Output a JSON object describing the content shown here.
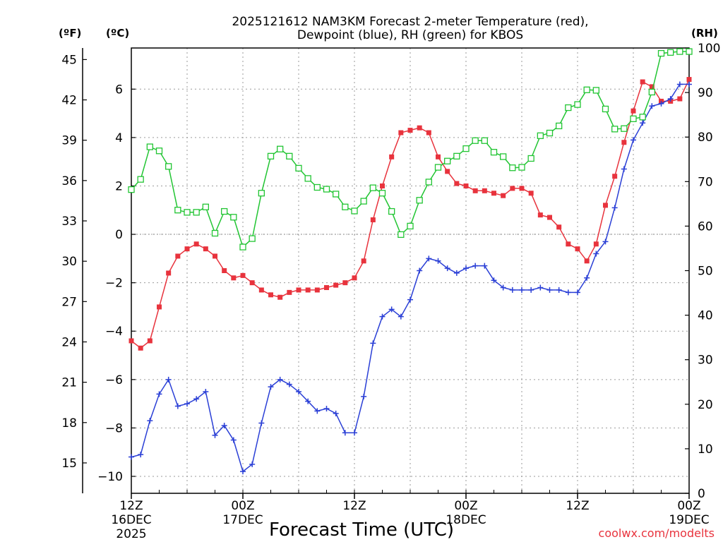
{
  "chart_data": {
    "type": "line",
    "title_line1": "2025121612 NAM3KM Forecast 2-meter Temperature (red),",
    "title_line2": "Dewpoint (blue), RH (green) for KBOS",
    "unit_f": "(ºF)",
    "unit_c": "(ºC)",
    "unit_rh": "(RH)",
    "xlabel": "Forecast Time (UTC)",
    "credit": "coolwx.com/modelts",
    "x_hours": [
      0,
      1,
      2,
      3,
      4,
      5,
      6,
      7,
      8,
      9,
      10,
      11,
      12,
      13,
      14,
      15,
      16,
      17,
      18,
      19,
      20,
      21,
      22,
      23,
      24,
      25,
      26,
      27,
      28,
      29,
      30,
      31,
      32,
      33,
      34,
      35,
      36,
      37,
      38,
      39,
      40,
      41,
      42,
      43,
      44,
      45,
      46,
      47,
      48,
      49,
      50,
      51,
      52,
      53,
      54,
      55,
      56,
      57,
      58,
      59,
      60
    ],
    "x_range": [
      0,
      60
    ],
    "x_ticks": [
      {
        "hour": 0,
        "l1": "12Z",
        "l2": "16DEC",
        "l3": "2025"
      },
      {
        "hour": 12,
        "l1": "00Z",
        "l2": "17DEC",
        "l3": ""
      },
      {
        "hour": 24,
        "l1": "12Z",
        "l2": "",
        "l3": ""
      },
      {
        "hour": 36,
        "l1": "00Z",
        "l2": "18DEC",
        "l3": ""
      },
      {
        "hour": 48,
        "l1": "12Z",
        "l2": "",
        "l3": ""
      },
      {
        "hour": 60,
        "l1": "00Z",
        "l2": "19DEC",
        "l3": ""
      }
    ],
    "c_range": [
      -10.7,
      7.7
    ],
    "c_ticks": [
      -10,
      -8,
      -6,
      -4,
      -2,
      0,
      2,
      4,
      6
    ],
    "f_ticks": [
      15,
      18,
      21,
      24,
      27,
      30,
      33,
      36,
      39,
      42,
      45
    ],
    "rh_range": [
      0,
      100
    ],
    "rh_ticks": [
      0,
      10,
      20,
      30,
      40,
      50,
      60,
      70,
      80,
      90,
      100
    ],
    "series": [
      {
        "name": "Temperature",
        "units": "C",
        "color": "#e8333d",
        "marker": "filled-square",
        "values": [
          -4.4,
          -4.7,
          -4.4,
          -3.0,
          -1.6,
          -0.9,
          -0.6,
          -0.4,
          -0.6,
          -0.9,
          -1.5,
          -1.8,
          -1.7,
          -2.0,
          -2.3,
          -2.5,
          -2.6,
          -2.4,
          -2.3,
          -2.3,
          -2.3,
          -2.2,
          -2.1,
          -2.0,
          -1.8,
          -1.1,
          0.6,
          2.0,
          3.2,
          4.2,
          4.3,
          4.4,
          4.2,
          3.2,
          2.6,
          2.1,
          2.0,
          1.8,
          1.8,
          1.7,
          1.6,
          1.9,
          1.9,
          1.7,
          0.8,
          0.7,
          0.3,
          -0.4,
          -0.6,
          -1.1,
          -0.4,
          1.2,
          2.4,
          3.8,
          5.1,
          6.3,
          6.1,
          5.5,
          5.5,
          5.6,
          6.4
        ]
      },
      {
        "name": "Dewpoint",
        "units": "C",
        "color": "#2a3fd6",
        "marker": "plus",
        "values": [
          -9.2,
          -9.1,
          -7.7,
          -6.6,
          -6.0,
          -7.1,
          -7.0,
          -6.8,
          -6.5,
          -8.3,
          -7.9,
          -8.5,
          -9.8,
          -9.5,
          -7.8,
          -6.3,
          -6.0,
          -6.2,
          -6.5,
          -6.9,
          -7.3,
          -7.2,
          -7.4,
          -8.2,
          -8.2,
          -6.7,
          -4.5,
          -3.4,
          -3.1,
          -3.4,
          -2.7,
          -1.5,
          -1.0,
          -1.1,
          -1.4,
          -1.6,
          -1.4,
          -1.3,
          -1.3,
          -1.9,
          -2.2,
          -2.3,
          -2.3,
          -2.3,
          -2.2,
          -2.3,
          -2.3,
          -2.4,
          -2.4,
          -1.8,
          -0.8,
          -0.3,
          1.1,
          2.7,
          3.9,
          4.6,
          5.3,
          5.4,
          5.6,
          6.2,
          6.2
        ]
      },
      {
        "name": "RH",
        "units": "%",
        "color": "#22c533",
        "marker": "open-square",
        "values": [
          68.2,
          70.5,
          77.8,
          76.9,
          73.4,
          63.6,
          63.1,
          63.1,
          64.3,
          58.4,
          63.3,
          62.0,
          55.3,
          57.2,
          67.4,
          75.7,
          77.3,
          75.7,
          73.0,
          70.7,
          68.7,
          68.3,
          67.2,
          64.3,
          63.4,
          65.6,
          68.6,
          67.4,
          63.3,
          58.1,
          60.0,
          65.8,
          69.9,
          73.2,
          74.6,
          75.7,
          77.4,
          79.2,
          79.2,
          76.6,
          75.6,
          73.1,
          73.2,
          75.2,
          80.3,
          80.9,
          82.5,
          86.6,
          87.3,
          90.6,
          90.5,
          86.3,
          81.8,
          81.9,
          84.1,
          84.5,
          90.1,
          98.8,
          99.0,
          99.2,
          99.2
        ]
      }
    ]
  }
}
